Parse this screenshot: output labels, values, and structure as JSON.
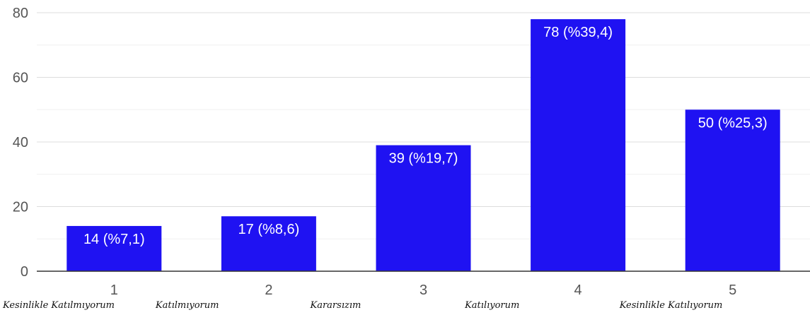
{
  "chart_data": {
    "type": "bar",
    "categories": [
      "1",
      "2",
      "3",
      "4",
      "5"
    ],
    "category_descriptions": [
      "Kesinlikle Katılmıyorum",
      "Katılmıyorum",
      "Kararsızım",
      "Katılıyorum",
      "Kesinlikle Katılıyorum"
    ],
    "values": [
      14,
      17,
      39,
      78,
      50
    ],
    "data_labels": [
      "14 (%7,1)",
      "17 (%8,6)",
      "39 (%19,7)",
      "78 (%39,4)",
      "50 (%25,3)"
    ],
    "y_ticks": [
      0,
      20,
      40,
      60,
      80
    ],
    "ylim": [
      0,
      80
    ],
    "grid": true,
    "bar_color": "#1f12f2",
    "title": "",
    "xlabel": "",
    "ylabel": ""
  }
}
